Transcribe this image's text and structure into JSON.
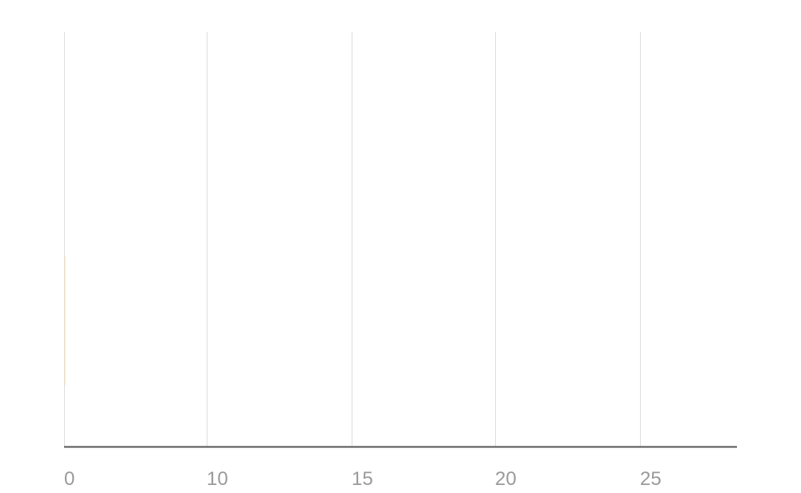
{
  "chart_data": {
    "type": "bar",
    "orientation": "horizontal",
    "title": "",
    "xlabel": "",
    "ylabel": "",
    "x_tick_labels": [
      "0",
      "10",
      "15",
      "20",
      "25"
    ],
    "categories": [
      ""
    ],
    "values": [
      0
    ],
    "grid": true,
    "colors": {
      "bar": "#e8dcc2",
      "grid": "#dddddd",
      "axis": "#555555",
      "tick_text": "#9a9a9a"
    }
  }
}
